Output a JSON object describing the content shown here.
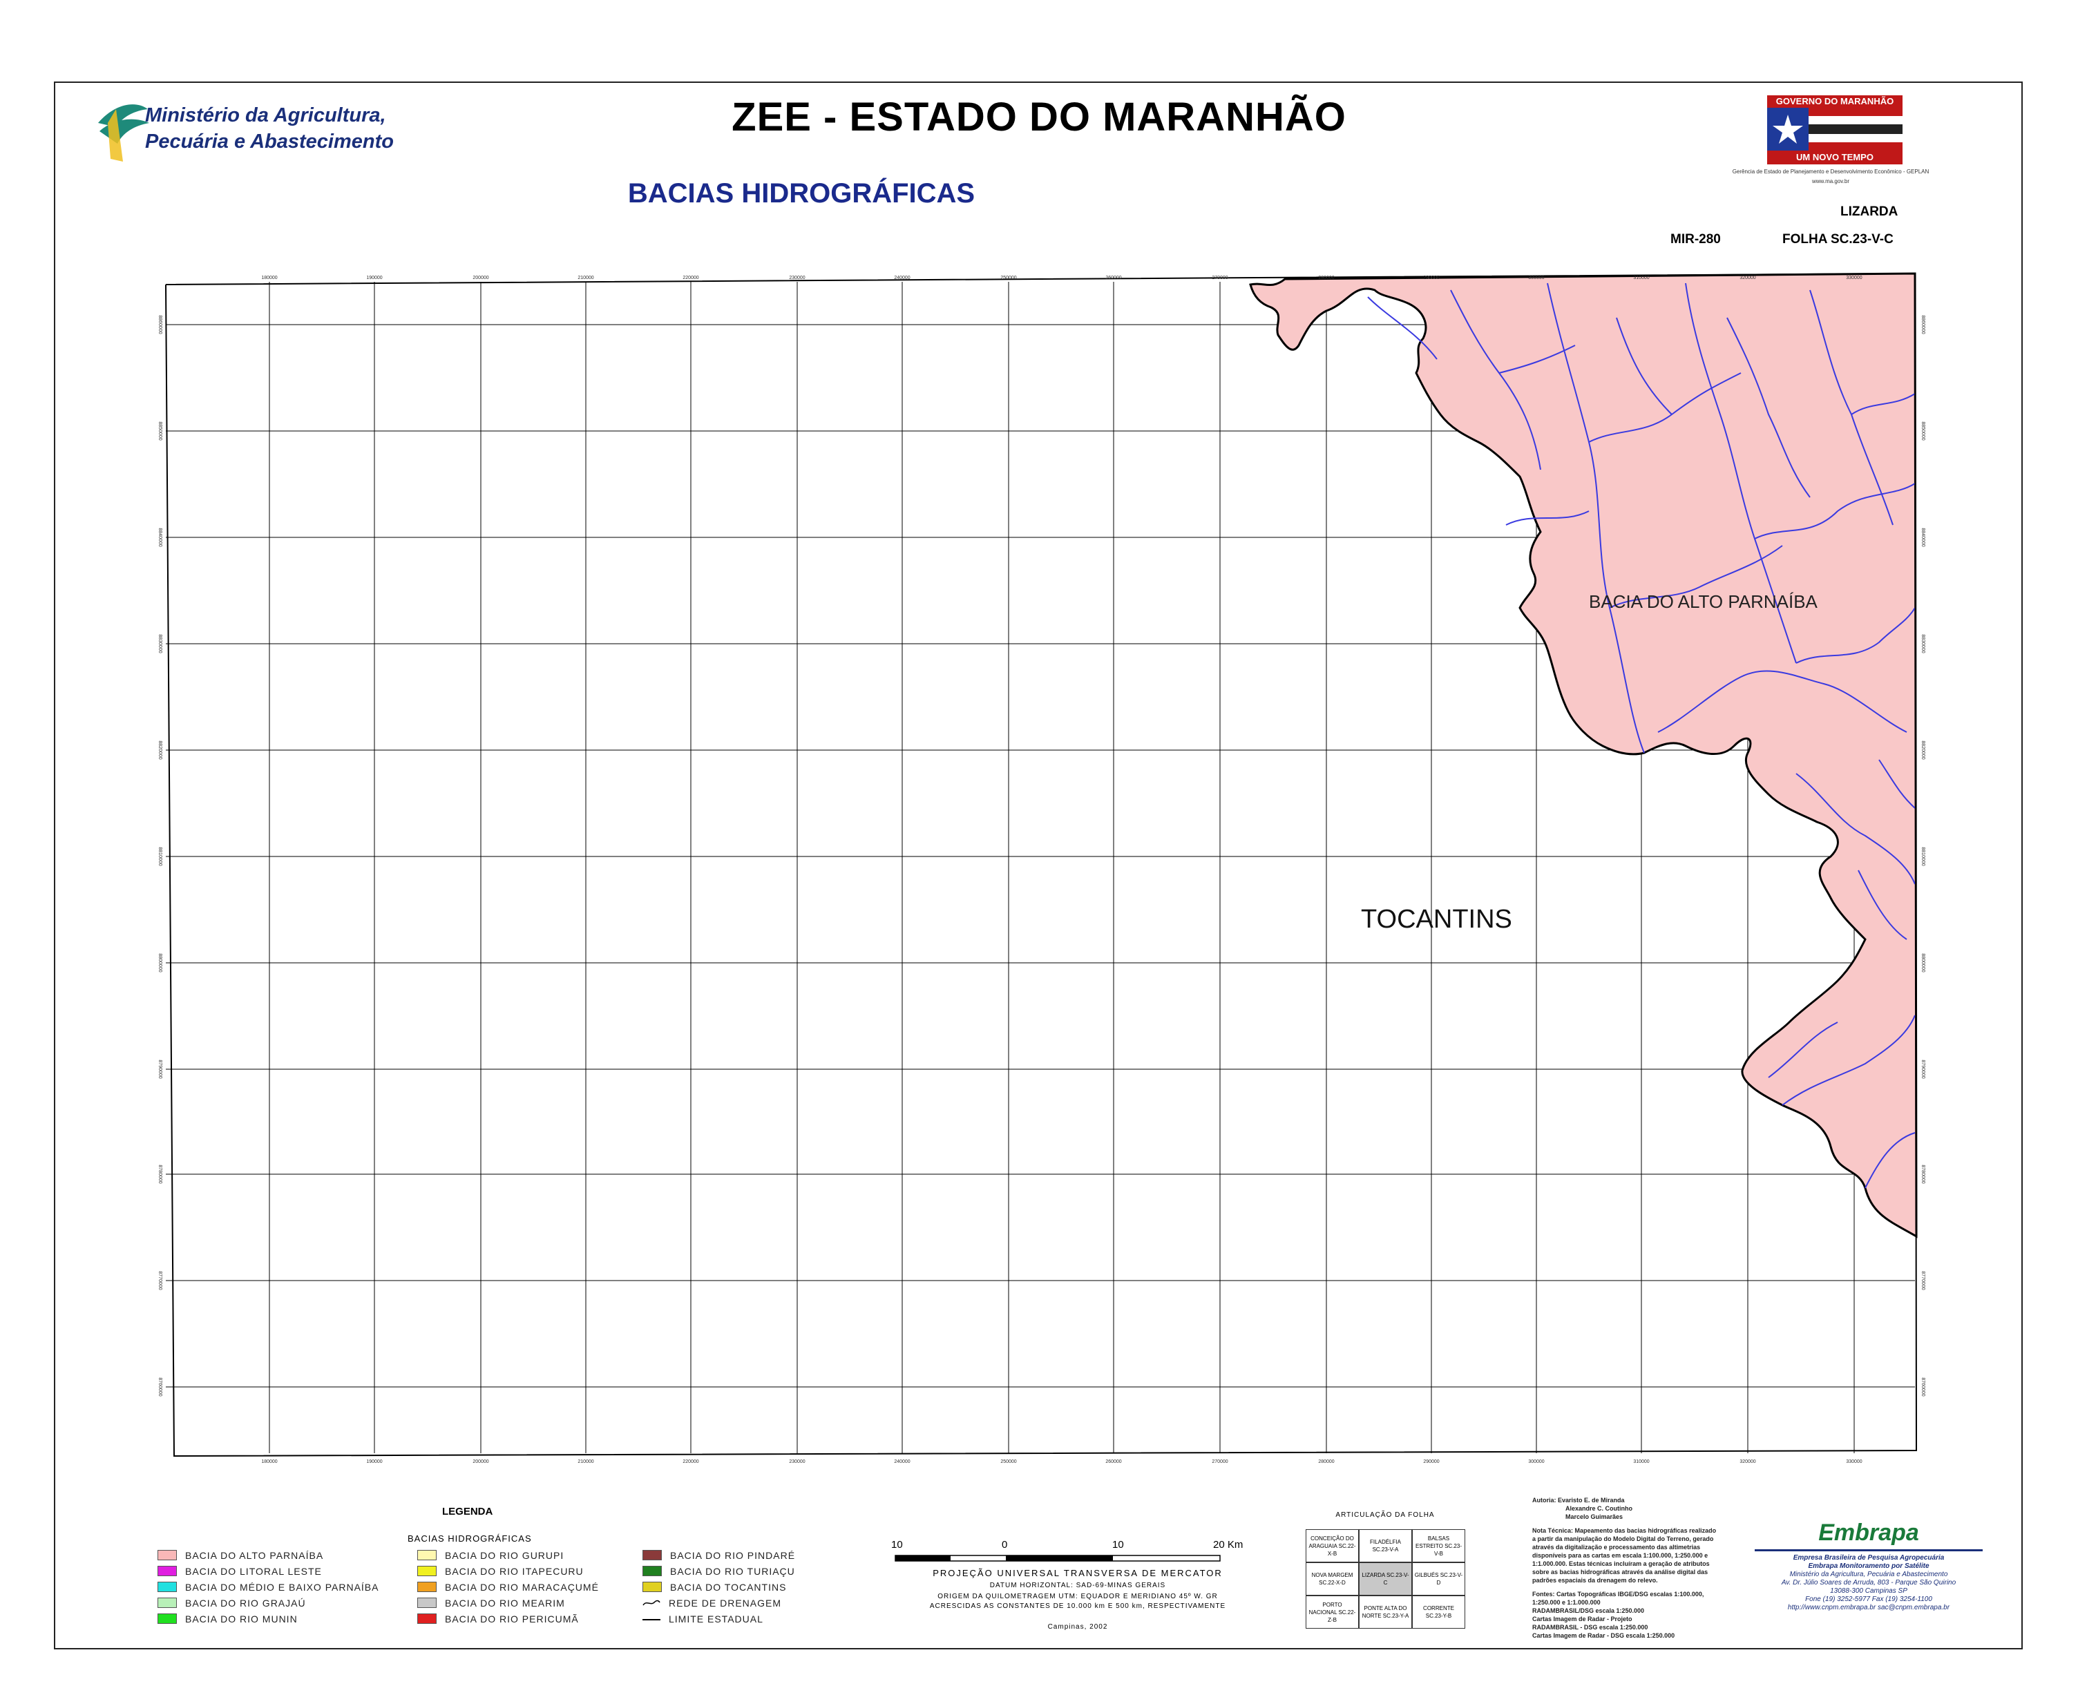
{
  "header": {
    "title": "ZEE - ESTADO DO MARANHÃO",
    "subtitle": "BACIAS HIDROGRÁFICAS",
    "ministry_line1": "Ministério da Agricultura,",
    "ministry_line2": "Pecuária e Abastecimento",
    "gov_top": "GOVERNO DO MARANHÃO",
    "gov_bottom": "UM NOVO TEMPO",
    "geplan": "Gerência de Estado de Planejamento e Desenvolvimento Econômico - GEPLAN",
    "gov_site": "www.ma.gov.br",
    "sheet_name": "LIZARDA",
    "mir": "MIR-280",
    "folha": "FOLHA SC.23-V-C"
  },
  "map": {
    "label_basin": "BACIA DO ALTO PARNAÍBA",
    "label_state": "TOCANTINS",
    "basin_color": "#f9c8c8",
    "river_color": "#3a3ae0",
    "x_ticks": [
      "180000",
      "190000",
      "200000",
      "210000",
      "220000",
      "230000",
      "240000",
      "250000",
      "260000",
      "270000",
      "280000",
      "290000",
      "300000",
      "310000",
      "320000",
      "330000"
    ],
    "y_ticks_left": [
      "8860000",
      "8850000",
      "8840000",
      "8830000",
      "8820000",
      "8810000",
      "8800000",
      "8790000",
      "8780000",
      "8770000",
      "8760000"
    ],
    "y_ticks_right": [
      "8860000",
      "8850000",
      "8840000",
      "8830000",
      "8820000",
      "8810000",
      "8800000",
      "8790000",
      "8780000",
      "8770000",
      "8760000"
    ]
  },
  "legend": {
    "title": "LEGENDA",
    "group_title": "BACIAS HIDROGRÁFICAS",
    "col1": [
      {
        "label": "BACIA DO ALTO PARNAÍBA",
        "color": "#f9b8b8"
      },
      {
        "label": "BACIA DO LITORAL LESTE",
        "color": "#e01ee0"
      },
      {
        "label": "BACIA DO MÉDIO E BAIXO PARNAÍBA",
        "color": "#20e0e0"
      },
      {
        "label": "BACIA DO RIO GRAJAÚ",
        "color": "#b8f0b8"
      },
      {
        "label": "BACIA DO RIO MUNIN",
        "color": "#20e020"
      }
    ],
    "col2": [
      {
        "label": "BACIA DO RIO GURUPI",
        "color": "#fff8b0"
      },
      {
        "label": "BACIA DO RIO ITAPECURU",
        "color": "#f0f020"
      },
      {
        "label": "BACIA DO RIO MARACAÇUMÉ",
        "color": "#f0a020"
      },
      {
        "label": "BACIA DO RIO MEARIM",
        "color": "#c8c8c8"
      },
      {
        "label": "BACIA DO RIO PERICUMÃ",
        "color": "#e02020"
      }
    ],
    "col3": [
      {
        "label": "BACIA DO RIO PINDARÉ",
        "color": "#8a3a3a"
      },
      {
        "label": "BACIA DO RIO TURIAÇU",
        "color": "#208020"
      },
      {
        "label": "BACIA DO TOCANTINS",
        "color": "#e0d020"
      },
      {
        "label": "REDE DE DRENAGEM",
        "color": ""
      },
      {
        "label": "LIMITE ESTADUAL",
        "color": ""
      }
    ]
  },
  "scale": {
    "labels": [
      "10",
      "0",
      "10",
      "20  Km"
    ],
    "projection": "PROJEÇÃO UNIVERSAL TRANSVERSA DE MERCATOR",
    "datum": "DATUM HORIZONTAL: SAD-69-MINAS GERAIS",
    "origin": "ORIGEM DA QUILOMETRAGEM UTM: EQUADOR E MERIDIANO 45º W. GR",
    "constants": "ACRESCIDAS AS CONSTANTES DE 10.000 km E 500 km, RESPECTIVAMENTE",
    "place": "Campinas, 2002"
  },
  "articulacao": {
    "title": "ARTICULAÇÃO DA FOLHA",
    "cells": [
      "CONCEIÇÃO DO ARAGUAIA SC.22-X-B",
      "FILADÉLFIA SC.23-V-A",
      "BALSAS ESTREITO SC.23-V-B",
      "NOVA MARGEM SC.22-X-D",
      "LIZARDA SC.23-V-C",
      "GILBUÉS SC.23-V-D",
      "PORTO NACIONAL SC.22-Z-B",
      "PONTE ALTA DO NORTE SC.23-Y-A",
      "CORRENTE SC.23-Y-B"
    ]
  },
  "credits": {
    "autoria": "Autoria: Evaristo E. de Miranda",
    "autor2": "Alexandre C. Coutinho",
    "autor3": "Marcelo Guimarães",
    "nota": "Nota Técnica: Mapeamento das bacias hidrográficas realizado a partir da manipulação do Modelo Digital do Terreno, gerado através da digitalização e processamento das altimetrias disponíveis para as cartas em escala 1:100.000, 1:250.000 e 1:1.000.000. Estas técnicas incluíram a geração de atributos sobre as bacias hidrográficas através da análise digital das padrões espaciais da drenagem do relevo.",
    "fontes": "Fontes: Cartas Topográficas IBGE/DSG escalas 1:100.000, 1:250.000 e 1:1.000.000",
    "radam": "RADAMBRASIL/DSG escala 1:250.000",
    "cartas1": "Cartas Imagem de Radar - Projeto",
    "cartas2": "RADAMBRASIL - DSG escala 1:250.000",
    "cartas3": "Cartas Imagem de Radar - DSG escala 1:250.000"
  },
  "embrapa": {
    "logo": "Embrapa",
    "line1": "Empresa Brasileira de Pesquisa Agropecuária",
    "line2": "Embrapa Monitoramento por Satélite",
    "line3": "Ministério da Agricultura, Pecuária e Abastecimento",
    "line4": "Av. Dr. Júlio Soares de Arruda, 803 - Parque São Quirino",
    "line5": "13088-300 Campinas SP",
    "line6": "Fone (19) 3252-5977 Fax (19) 3254-1100",
    "line7": "http://www.cnpm.embrapa.br  sac@cnpm.embrapa.br"
  }
}
